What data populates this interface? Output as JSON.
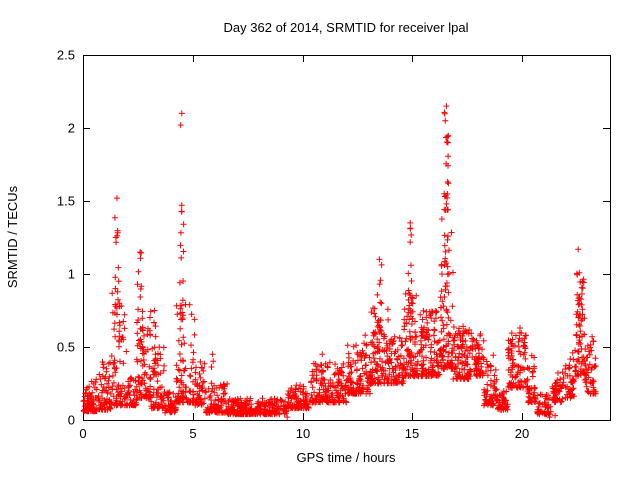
{
  "chart_data": {
    "type": "scatter",
    "title": "Day 362 of 2014, SRMTID for receiver lpal",
    "xlabel": "GPS time / hours",
    "ylabel": "SRMTID / TECUs",
    "xlim": [
      0,
      24
    ],
    "ylim": [
      0,
      2.5
    ],
    "xticks": {
      "values": [
        0,
        5,
        10,
        15,
        20
      ],
      "labels": [
        "0",
        "5",
        "10",
        "15",
        "20"
      ]
    },
    "yticks": {
      "values": [
        0,
        0.5,
        1,
        1.5,
        2,
        2.5
      ],
      "labels": [
        "0",
        "0.5",
        "1",
        "1.5",
        "2",
        "2.5"
      ]
    },
    "grid": false,
    "legend": "none",
    "marker": {
      "shape": "plus",
      "color": "#ff0000",
      "size": 7
    },
    "seed": 1337,
    "baseline_segments": [
      {
        "x0": 0.0,
        "x1": 0.7,
        "n": 80,
        "y0": 0.06,
        "y1": 0.3,
        "pow": 2.2
      },
      {
        "x0": 0.7,
        "x1": 1.3,
        "n": 60,
        "y0": 0.07,
        "y1": 0.4,
        "pow": 2.2
      },
      {
        "x0": 1.3,
        "x1": 2.0,
        "n": 70,
        "y0": 0.1,
        "y1": 0.9,
        "pow": 2.4
      },
      {
        "x0": 2.0,
        "x1": 2.45,
        "n": 45,
        "y0": 0.1,
        "y1": 0.3,
        "pow": 2.0
      },
      {
        "x0": 2.45,
        "x1": 3.1,
        "n": 80,
        "y0": 0.15,
        "y1": 0.8,
        "pow": 2.2
      },
      {
        "x0": 3.1,
        "x1": 3.7,
        "n": 60,
        "y0": 0.08,
        "y1": 0.5,
        "pow": 2.2
      },
      {
        "x0": 3.7,
        "x1": 4.25,
        "n": 50,
        "y0": 0.05,
        "y1": 0.2,
        "pow": 2.0
      },
      {
        "x0": 4.25,
        "x1": 5.1,
        "n": 95,
        "y0": 0.12,
        "y1": 0.8,
        "pow": 2.4
      },
      {
        "x0": 5.1,
        "x1": 5.6,
        "n": 45,
        "y0": 0.1,
        "y1": 0.4,
        "pow": 2.0
      },
      {
        "x0": 5.6,
        "x1": 6.6,
        "n": 90,
        "y0": 0.05,
        "y1": 0.25,
        "pow": 2.2
      },
      {
        "x0": 6.6,
        "x1": 9.3,
        "n": 250,
        "y0": 0.04,
        "y1": 0.15,
        "pow": 1.8
      },
      {
        "x0": 9.3,
        "x1": 10.3,
        "n": 90,
        "y0": 0.08,
        "y1": 0.24,
        "pow": 1.8
      },
      {
        "x0": 10.3,
        "x1": 12.0,
        "n": 160,
        "y0": 0.12,
        "y1": 0.4,
        "pow": 2.0
      },
      {
        "x0": 12.0,
        "x1": 13.1,
        "n": 110,
        "y0": 0.18,
        "y1": 0.52,
        "pow": 1.8
      },
      {
        "x0": 13.1,
        "x1": 13.9,
        "n": 90,
        "y0": 0.25,
        "y1": 0.8,
        "pow": 2.0
      },
      {
        "x0": 13.9,
        "x1": 14.6,
        "n": 70,
        "y0": 0.25,
        "y1": 0.58,
        "pow": 1.8
      },
      {
        "x0": 14.6,
        "x1": 15.3,
        "n": 85,
        "y0": 0.3,
        "y1": 0.9,
        "pow": 2.0
      },
      {
        "x0": 15.3,
        "x1": 16.25,
        "n": 115,
        "y0": 0.3,
        "y1": 0.75,
        "pow": 1.6
      },
      {
        "x0": 16.25,
        "x1": 16.85,
        "n": 95,
        "y0": 0.35,
        "y1": 1.55,
        "pow": 2.2
      },
      {
        "x0": 16.85,
        "x1": 17.6,
        "n": 90,
        "y0": 0.28,
        "y1": 0.65,
        "pow": 1.6
      },
      {
        "x0": 17.6,
        "x1": 18.25,
        "n": 70,
        "y0": 0.3,
        "y1": 0.6,
        "pow": 1.6
      },
      {
        "x0": 18.25,
        "x1": 18.85,
        "n": 55,
        "y0": 0.1,
        "y1": 0.45,
        "pow": 1.8
      },
      {
        "x0": 18.85,
        "x1": 19.35,
        "n": 45,
        "y0": 0.07,
        "y1": 0.2,
        "pow": 1.8
      },
      {
        "x0": 19.35,
        "x1": 20.25,
        "n": 90,
        "y0": 0.22,
        "y1": 0.6,
        "pow": 1.6
      },
      {
        "x0": 20.25,
        "x1": 20.65,
        "n": 38,
        "y0": 0.12,
        "y1": 0.45,
        "pow": 1.8
      },
      {
        "x0": 20.65,
        "x1": 21.35,
        "n": 48,
        "y0": 0.04,
        "y1": 0.18,
        "pow": 1.8
      },
      {
        "x0": 21.35,
        "x1": 21.95,
        "n": 48,
        "y0": 0.12,
        "y1": 0.33,
        "pow": 1.8
      },
      {
        "x0": 21.95,
        "x1": 22.4,
        "n": 40,
        "y0": 0.15,
        "y1": 0.48,
        "pow": 1.8
      },
      {
        "x0": 22.4,
        "x1": 22.85,
        "n": 60,
        "y0": 0.3,
        "y1": 1.0,
        "pow": 2.0
      },
      {
        "x0": 22.85,
        "x1": 23.35,
        "n": 50,
        "y0": 0.18,
        "y1": 0.6,
        "pow": 1.8
      }
    ],
    "spikes": [
      {
        "x": 1.55,
        "spread": 0.12,
        "base": 0.3,
        "ymax": 1.52,
        "n": 22
      },
      {
        "x": 2.6,
        "spread": 0.12,
        "base": 0.4,
        "ymax": 1.15,
        "n": 18
      },
      {
        "x": 3.25,
        "spread": 0.08,
        "base": 0.3,
        "ymax": 0.75,
        "n": 10
      },
      {
        "x": 4.5,
        "spread": 0.1,
        "base": 0.5,
        "ymax": 2.1,
        "n": 16
      },
      {
        "x": 5.9,
        "spread": 0.05,
        "base": 0.15,
        "ymax": 0.45,
        "n": 6
      },
      {
        "x": 10.9,
        "spread": 0.06,
        "base": 0.2,
        "ymax": 0.45,
        "n": 6
      },
      {
        "x": 12.85,
        "spread": 0.07,
        "base": 0.3,
        "ymax": 0.58,
        "n": 8
      },
      {
        "x": 13.5,
        "spread": 0.1,
        "base": 0.5,
        "ymax": 1.1,
        "n": 14
      },
      {
        "x": 14.9,
        "spread": 0.1,
        "base": 0.55,
        "ymax": 1.35,
        "n": 14
      },
      {
        "x": 16.55,
        "spread": 0.1,
        "base": 0.8,
        "ymax": 2.15,
        "n": 26
      },
      {
        "x": 19.9,
        "spread": 0.08,
        "base": 0.3,
        "ymax": 0.63,
        "n": 8
      },
      {
        "x": 22.55,
        "spread": 0.07,
        "base": 0.5,
        "ymax": 1.17,
        "n": 12
      }
    ],
    "isolated_points": [
      [
        9.3,
        0.02
      ],
      [
        21.25,
        0.02
      ],
      [
        21.5,
        0.03
      ],
      [
        4.45,
        2.02
      ],
      [
        16.5,
        2.05
      ],
      [
        16.62,
        1.9
      ],
      [
        1.5,
        1.25
      ]
    ]
  }
}
